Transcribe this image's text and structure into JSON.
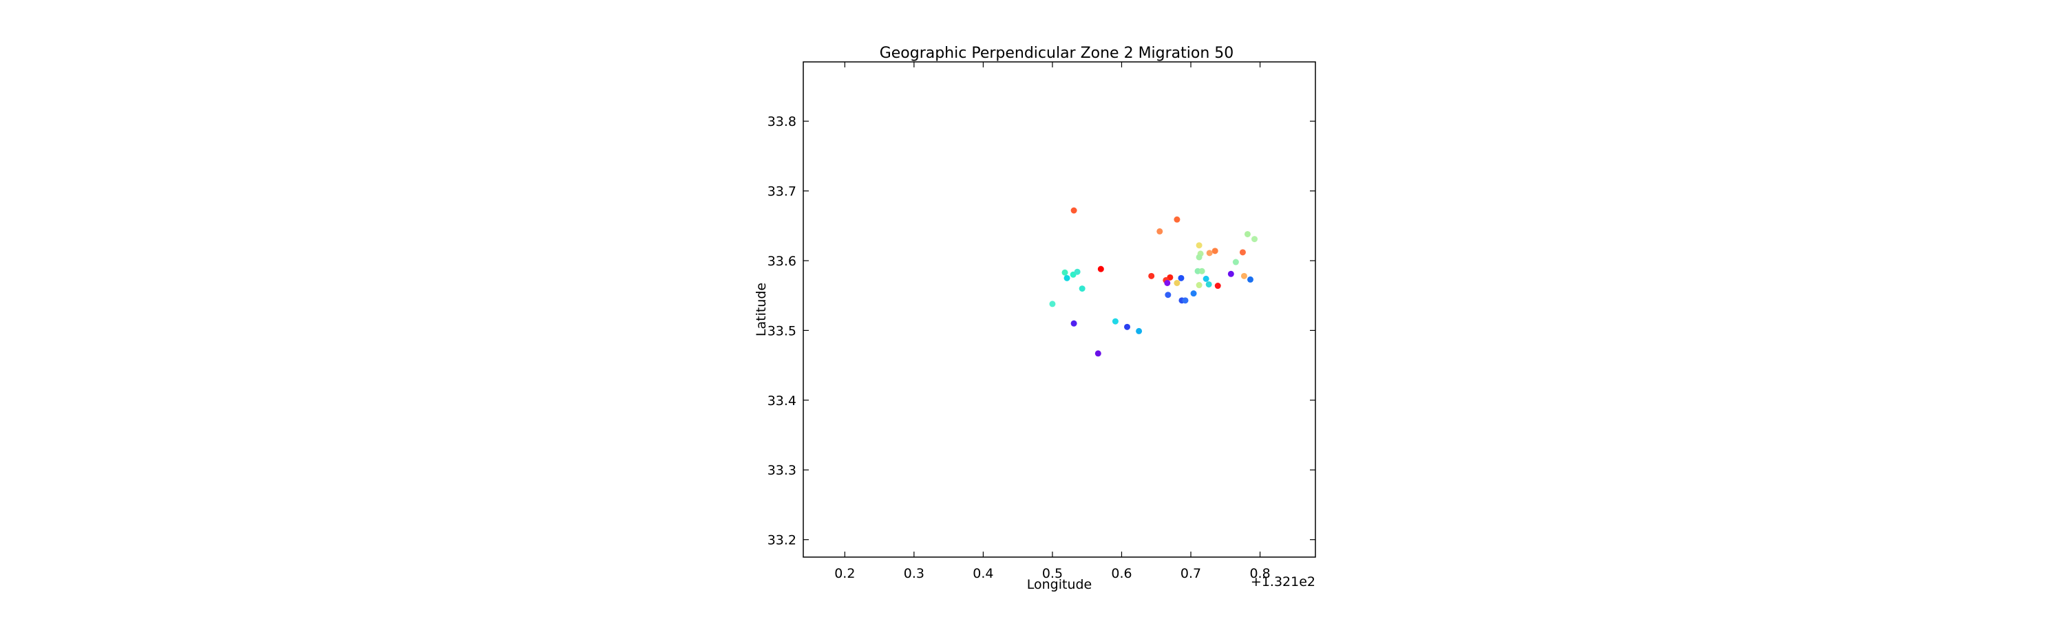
{
  "chart_data": {
    "type": "scatter",
    "title": "Geographic Perpendicular Zone 2 Migration 50",
    "xlabel": "Longitude",
    "ylabel": "Latitude",
    "x_offset_text": "+1.321e2",
    "xlim": [
      0.14,
      0.88
    ],
    "ylim": [
      33.175,
      33.885
    ],
    "xticks": [
      0.2,
      0.3,
      0.4,
      0.5,
      0.6,
      0.7,
      0.8
    ],
    "xtick_labels": [
      "0.2",
      "0.3",
      "0.4",
      "0.5",
      "0.6",
      "0.7",
      "0.8"
    ],
    "yticks": [
      33.2,
      33.3,
      33.4,
      33.5,
      33.6,
      33.7,
      33.8
    ],
    "ytick_labels": [
      "33.2",
      "33.3",
      "33.4",
      "33.5",
      "33.6",
      "33.7",
      "33.8"
    ],
    "grid": false,
    "colormap": "rainbow",
    "points": [
      {
        "x": 0.531,
        "y": 33.672,
        "color": "#ff5a30"
      },
      {
        "x": 0.68,
        "y": 33.659,
        "color": "#ff6a35"
      },
      {
        "x": 0.655,
        "y": 33.642,
        "color": "#ff8c50"
      },
      {
        "x": 0.782,
        "y": 33.638,
        "color": "#aef0a0"
      },
      {
        "x": 0.792,
        "y": 33.631,
        "color": "#b2f2a8"
      },
      {
        "x": 0.712,
        "y": 33.622,
        "color": "#f0e070"
      },
      {
        "x": 0.735,
        "y": 33.614,
        "color": "#ff8040"
      },
      {
        "x": 0.727,
        "y": 33.611,
        "color": "#ffa060"
      },
      {
        "x": 0.775,
        "y": 33.612,
        "color": "#ff7040"
      },
      {
        "x": 0.714,
        "y": 33.61,
        "color": "#b8f0a0"
      },
      {
        "x": 0.712,
        "y": 33.605,
        "color": "#a8f0a8"
      },
      {
        "x": 0.765,
        "y": 33.598,
        "color": "#98f0b0"
      },
      {
        "x": 0.57,
        "y": 33.588,
        "color": "#ff0000"
      },
      {
        "x": 0.71,
        "y": 33.585,
        "color": "#90eeb0"
      },
      {
        "x": 0.716,
        "y": 33.585,
        "color": "#a0f0a8"
      },
      {
        "x": 0.518,
        "y": 33.583,
        "color": "#40f0c0"
      },
      {
        "x": 0.53,
        "y": 33.58,
        "color": "#30f0c8"
      },
      {
        "x": 0.536,
        "y": 33.584,
        "color": "#40e8d0"
      },
      {
        "x": 0.758,
        "y": 33.581,
        "color": "#6a10f0"
      },
      {
        "x": 0.643,
        "y": 33.578,
        "color": "#ff3020"
      },
      {
        "x": 0.777,
        "y": 33.578,
        "color": "#ffb060"
      },
      {
        "x": 0.67,
        "y": 33.576,
        "color": "#ff2010"
      },
      {
        "x": 0.686,
        "y": 33.575,
        "color": "#2050f8"
      },
      {
        "x": 0.722,
        "y": 33.574,
        "color": "#18c8f0"
      },
      {
        "x": 0.521,
        "y": 33.575,
        "color": "#10d8e0"
      },
      {
        "x": 0.786,
        "y": 33.573,
        "color": "#1a70f0"
      },
      {
        "x": 0.664,
        "y": 33.572,
        "color": "#ff3828"
      },
      {
        "x": 0.666,
        "y": 33.568,
        "color": "#8010f0"
      },
      {
        "x": 0.68,
        "y": 33.568,
        "color": "#f0d060"
      },
      {
        "x": 0.712,
        "y": 33.565,
        "color": "#c8f090"
      },
      {
        "x": 0.726,
        "y": 33.566,
        "color": "#30d8d8"
      },
      {
        "x": 0.739,
        "y": 33.564,
        "color": "#ff1818"
      },
      {
        "x": 0.543,
        "y": 33.56,
        "color": "#30e8d0"
      },
      {
        "x": 0.704,
        "y": 33.553,
        "color": "#2080f8"
      },
      {
        "x": 0.667,
        "y": 33.551,
        "color": "#3060f8"
      },
      {
        "x": 0.687,
        "y": 33.543,
        "color": "#2a50f0"
      },
      {
        "x": 0.692,
        "y": 33.543,
        "color": "#3070f8"
      },
      {
        "x": 0.5,
        "y": 33.538,
        "color": "#50f0d0"
      },
      {
        "x": 0.591,
        "y": 33.513,
        "color": "#20d8e8"
      },
      {
        "x": 0.531,
        "y": 33.51,
        "color": "#5020f0"
      },
      {
        "x": 0.608,
        "y": 33.505,
        "color": "#2a40f0"
      },
      {
        "x": 0.625,
        "y": 33.499,
        "color": "#10b0f0"
      },
      {
        "x": 0.566,
        "y": 33.467,
        "color": "#6a10e8"
      }
    ]
  }
}
